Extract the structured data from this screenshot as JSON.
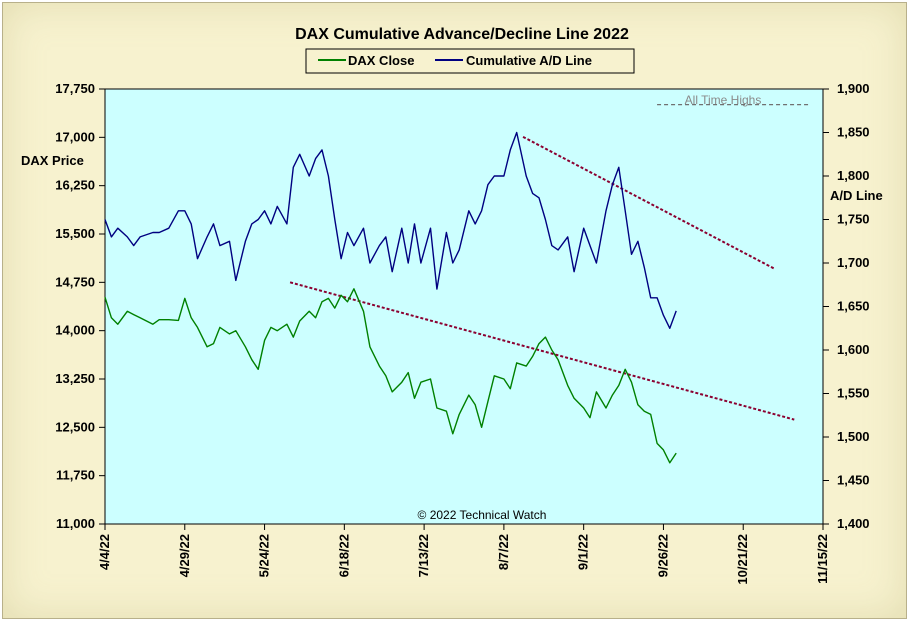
{
  "chart_data": {
    "type": "line",
    "title": "DAX Cumulative Advance/Decline Line 2022",
    "left_axis_label": "DAX Price",
    "right_axis_label": "A/D Line",
    "copyright": "© 2022 Technical Watch",
    "annotation": "All Time Highs",
    "x_range": [
      "2022-04-04",
      "2022-11-15"
    ],
    "x_ticks": [
      "4/4/22",
      "4/29/22",
      "5/24/22",
      "6/18/22",
      "7/13/22",
      "8/7/22",
      "9/1/22",
      "9/26/22",
      "10/21/22",
      "11/15/22"
    ],
    "y_left": {
      "min": 11000,
      "max": 17750,
      "ticks": [
        "11,000",
        "11,750",
        "12,500",
        "13,250",
        "14,000",
        "14,750",
        "15,500",
        "16,250",
        "17,000",
        "17,750"
      ]
    },
    "y_right": {
      "min": 1400,
      "max": 1900,
      "ticks": [
        "1,400",
        "1,450",
        "1,500",
        "1,550",
        "1,600",
        "1,650",
        "1,700",
        "1,750",
        "1,800",
        "1,850",
        "1,900"
      ]
    },
    "legend": [
      "DAX Close",
      "Cumulative A/D Line"
    ],
    "colors": {
      "dax": "#008000",
      "ad": "#000080",
      "trend": "#8b0030",
      "plot_bg": "#ccffff",
      "frame_bg": "#f7f2cf"
    },
    "series": [
      {
        "name": "DAX Close",
        "axis": "left",
        "points": [
          [
            "2022-04-04",
            14520
          ],
          [
            "2022-04-06",
            14200
          ],
          [
            "2022-04-08",
            14100
          ],
          [
            "2022-04-11",
            14300
          ],
          [
            "2022-04-13",
            14250
          ],
          [
            "2022-04-15",
            14200
          ],
          [
            "2022-04-19",
            14100
          ],
          [
            "2022-04-21",
            14170
          ],
          [
            "2022-04-24",
            14170
          ],
          [
            "2022-04-27",
            14160
          ],
          [
            "2022-04-29",
            14500
          ],
          [
            "2022-05-01",
            14200
          ],
          [
            "2022-05-03",
            14050
          ],
          [
            "2022-05-06",
            13750
          ],
          [
            "2022-05-08",
            13800
          ],
          [
            "2022-05-10",
            14050
          ],
          [
            "2022-05-13",
            13950
          ],
          [
            "2022-05-15",
            14000
          ],
          [
            "2022-05-18",
            13750
          ],
          [
            "2022-05-20",
            13550
          ],
          [
            "2022-05-22",
            13400
          ],
          [
            "2022-05-24",
            13850
          ],
          [
            "2022-05-26",
            14050
          ],
          [
            "2022-05-28",
            14000
          ],
          [
            "2022-05-31",
            14100
          ],
          [
            "2022-06-02",
            13900
          ],
          [
            "2022-06-04",
            14150
          ],
          [
            "2022-06-07",
            14300
          ],
          [
            "2022-06-09",
            14200
          ],
          [
            "2022-06-11",
            14450
          ],
          [
            "2022-06-13",
            14500
          ],
          [
            "2022-06-15",
            14350
          ],
          [
            "2022-06-17",
            14550
          ],
          [
            "2022-06-19",
            14450
          ],
          [
            "2022-06-21",
            14650
          ],
          [
            "2022-06-24",
            14300
          ],
          [
            "2022-06-26",
            13750
          ],
          [
            "2022-06-29",
            13450
          ],
          [
            "2022-07-01",
            13300
          ],
          [
            "2022-07-03",
            13050
          ],
          [
            "2022-07-06",
            13200
          ],
          [
            "2022-07-08",
            13350
          ],
          [
            "2022-07-10",
            12950
          ],
          [
            "2022-07-12",
            13200
          ],
          [
            "2022-07-15",
            13250
          ],
          [
            "2022-07-17",
            12800
          ],
          [
            "2022-07-20",
            12750
          ],
          [
            "2022-07-22",
            12400
          ],
          [
            "2022-07-24",
            12700
          ],
          [
            "2022-07-27",
            13000
          ],
          [
            "2022-07-29",
            12850
          ],
          [
            "2022-07-31",
            12500
          ],
          [
            "2022-08-02",
            12900
          ],
          [
            "2022-08-04",
            13300
          ],
          [
            "2022-08-07",
            13250
          ],
          [
            "2022-08-09",
            13100
          ],
          [
            "2022-08-11",
            13500
          ],
          [
            "2022-08-14",
            13450
          ],
          [
            "2022-08-16",
            13600
          ],
          [
            "2022-08-18",
            13800
          ],
          [
            "2022-08-20",
            13900
          ],
          [
            "2022-08-22",
            13700
          ],
          [
            "2022-08-24",
            13550
          ],
          [
            "2022-08-27",
            13150
          ],
          [
            "2022-08-29",
            12950
          ],
          [
            "2022-09-01",
            12800
          ],
          [
            "2022-09-03",
            12650
          ],
          [
            "2022-09-05",
            13050
          ],
          [
            "2022-09-08",
            12800
          ],
          [
            "2022-09-10",
            13000
          ],
          [
            "2022-09-12",
            13150
          ],
          [
            "2022-09-14",
            13400
          ],
          [
            "2022-09-16",
            13200
          ],
          [
            "2022-09-18",
            12850
          ],
          [
            "2022-09-20",
            12750
          ],
          [
            "2022-09-22",
            12700
          ],
          [
            "2022-09-24",
            12250
          ],
          [
            "2022-09-26",
            12150
          ],
          [
            "2022-09-28",
            11950
          ],
          [
            "2022-09-30",
            12100
          ]
        ]
      },
      {
        "name": "Cumulative A/D Line",
        "axis": "right",
        "points": [
          [
            "2022-04-04",
            1750
          ],
          [
            "2022-04-06",
            1730
          ],
          [
            "2022-04-08",
            1740
          ],
          [
            "2022-04-11",
            1730
          ],
          [
            "2022-04-13",
            1720
          ],
          [
            "2022-04-15",
            1730
          ],
          [
            "2022-04-19",
            1735
          ],
          [
            "2022-04-21",
            1735
          ],
          [
            "2022-04-24",
            1740
          ],
          [
            "2022-04-27",
            1760
          ],
          [
            "2022-04-29",
            1760
          ],
          [
            "2022-05-01",
            1745
          ],
          [
            "2022-05-03",
            1705
          ],
          [
            "2022-05-06",
            1730
          ],
          [
            "2022-05-08",
            1745
          ],
          [
            "2022-05-10",
            1720
          ],
          [
            "2022-05-13",
            1725
          ],
          [
            "2022-05-15",
            1680
          ],
          [
            "2022-05-18",
            1725
          ],
          [
            "2022-05-20",
            1745
          ],
          [
            "2022-05-22",
            1750
          ],
          [
            "2022-05-24",
            1760
          ],
          [
            "2022-05-26",
            1745
          ],
          [
            "2022-05-28",
            1765
          ],
          [
            "2022-05-31",
            1745
          ],
          [
            "2022-06-02",
            1810
          ],
          [
            "2022-06-04",
            1825
          ],
          [
            "2022-06-07",
            1800
          ],
          [
            "2022-06-09",
            1820
          ],
          [
            "2022-06-11",
            1830
          ],
          [
            "2022-06-13",
            1800
          ],
          [
            "2022-06-15",
            1750
          ],
          [
            "2022-06-17",
            1705
          ],
          [
            "2022-06-19",
            1735
          ],
          [
            "2022-06-21",
            1720
          ],
          [
            "2022-06-24",
            1740
          ],
          [
            "2022-06-26",
            1700
          ],
          [
            "2022-06-29",
            1720
          ],
          [
            "2022-07-01",
            1730
          ],
          [
            "2022-07-03",
            1690
          ],
          [
            "2022-07-06",
            1740
          ],
          [
            "2022-07-08",
            1700
          ],
          [
            "2022-07-10",
            1745
          ],
          [
            "2022-07-12",
            1700
          ],
          [
            "2022-07-15",
            1740
          ],
          [
            "2022-07-17",
            1670
          ],
          [
            "2022-07-20",
            1735
          ],
          [
            "2022-07-22",
            1700
          ],
          [
            "2022-07-24",
            1715
          ],
          [
            "2022-07-27",
            1760
          ],
          [
            "2022-07-29",
            1745
          ],
          [
            "2022-07-31",
            1760
          ],
          [
            "2022-08-02",
            1790
          ],
          [
            "2022-08-04",
            1800
          ],
          [
            "2022-08-07",
            1800
          ],
          [
            "2022-08-09",
            1830
          ],
          [
            "2022-08-11",
            1850
          ],
          [
            "2022-08-14",
            1800
          ],
          [
            "2022-08-16",
            1780
          ],
          [
            "2022-08-18",
            1775
          ],
          [
            "2022-08-20",
            1750
          ],
          [
            "2022-08-22",
            1720
          ],
          [
            "2022-08-24",
            1715
          ],
          [
            "2022-08-27",
            1730
          ],
          [
            "2022-08-29",
            1690
          ],
          [
            "2022-09-01",
            1740
          ],
          [
            "2022-09-03",
            1720
          ],
          [
            "2022-09-05",
            1700
          ],
          [
            "2022-09-08",
            1760
          ],
          [
            "2022-09-10",
            1790
          ],
          [
            "2022-09-12",
            1810
          ],
          [
            "2022-09-14",
            1760
          ],
          [
            "2022-09-16",
            1710
          ],
          [
            "2022-09-18",
            1725
          ],
          [
            "2022-09-20",
            1695
          ],
          [
            "2022-09-22",
            1660
          ],
          [
            "2022-09-24",
            1660
          ],
          [
            "2022-09-26",
            1640
          ],
          [
            "2022-09-28",
            1625
          ],
          [
            "2022-09-30",
            1645
          ]
        ]
      }
    ],
    "trendlines": [
      {
        "name": "A/D downtrend",
        "axis": "right",
        "from": [
          "2022-08-13",
          1845
        ],
        "to": [
          "2022-10-31",
          1693
        ]
      },
      {
        "name": "DAX downtrend",
        "axis": "left",
        "from": [
          "2022-06-01",
          14750
        ],
        "to": [
          "2022-11-06",
          12620
        ]
      }
    ],
    "reference_lines": [
      {
        "name": "All Time Highs",
        "axis": "right",
        "from": "2022-09-24",
        "to": "2022-11-11",
        "value": 1882
      }
    ]
  }
}
